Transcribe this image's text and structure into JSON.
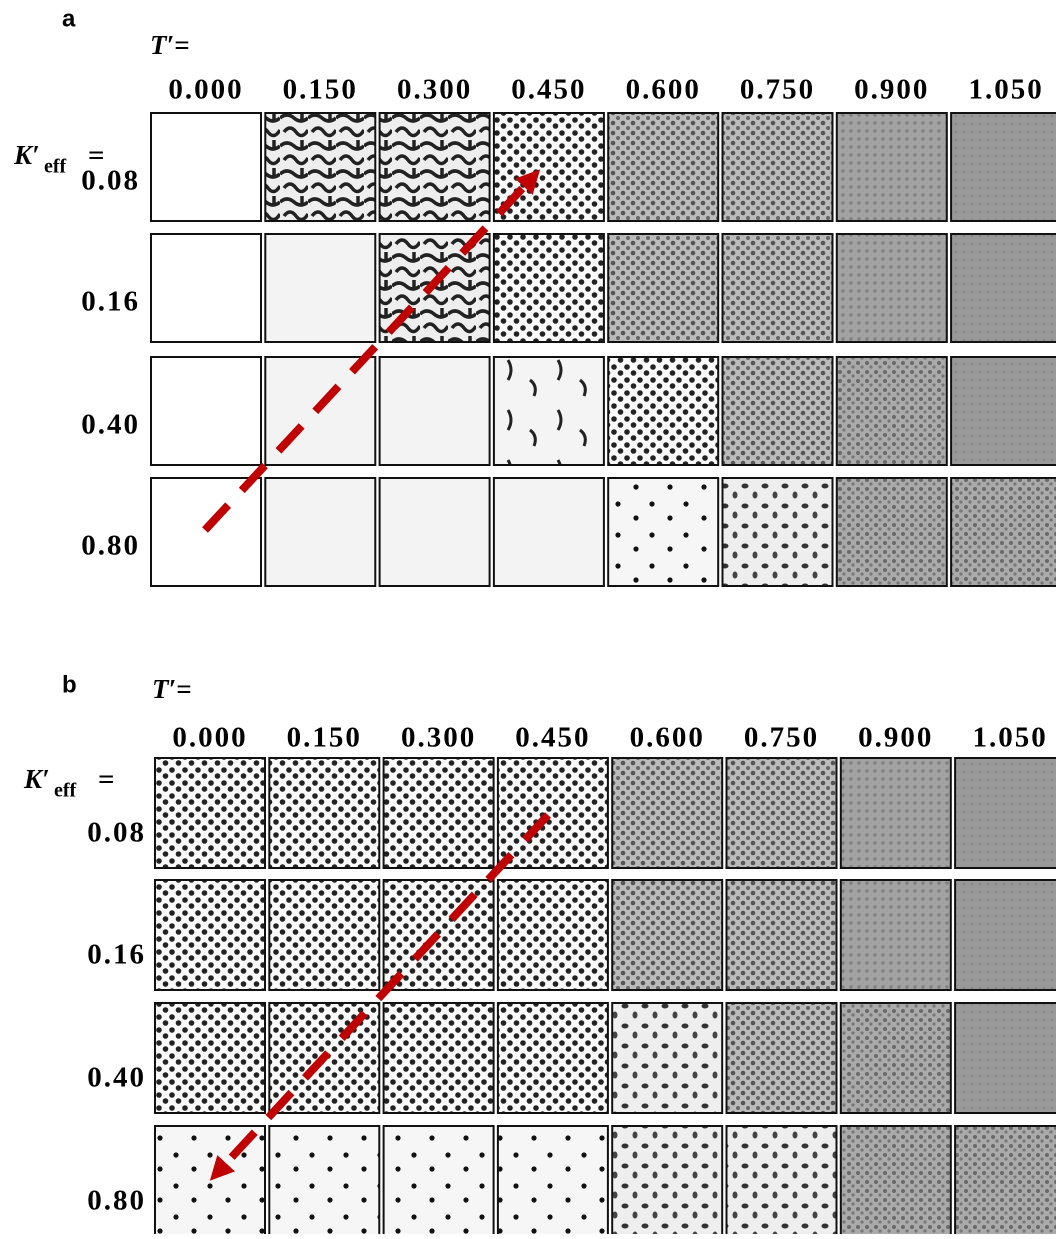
{
  "panels": [
    {
      "label": "a",
      "column_title": "T′=",
      "columns": [
        "0.000",
        "0.150",
        "0.300",
        "0.450",
        "0.600",
        "0.750",
        "0.900",
        "1.050"
      ],
      "row_title": {
        "symbol": "K′",
        "subscript": "eff",
        "suffix": "="
      },
      "rows": [
        "0.08",
        "0.16",
        "0.40",
        "0.80"
      ]
    },
    {
      "label": "b",
      "column_title": "T′=",
      "columns": [
        "0.000",
        "0.150",
        "0.300",
        "0.450",
        "0.600",
        "0.750",
        "0.900",
        "1.050"
      ],
      "row_title": {
        "symbol": "K′",
        "subscript": "eff",
        "suffix": "="
      },
      "rows": [
        "0.08",
        "0.16",
        "0.40",
        "0.80"
      ]
    }
  ]
}
